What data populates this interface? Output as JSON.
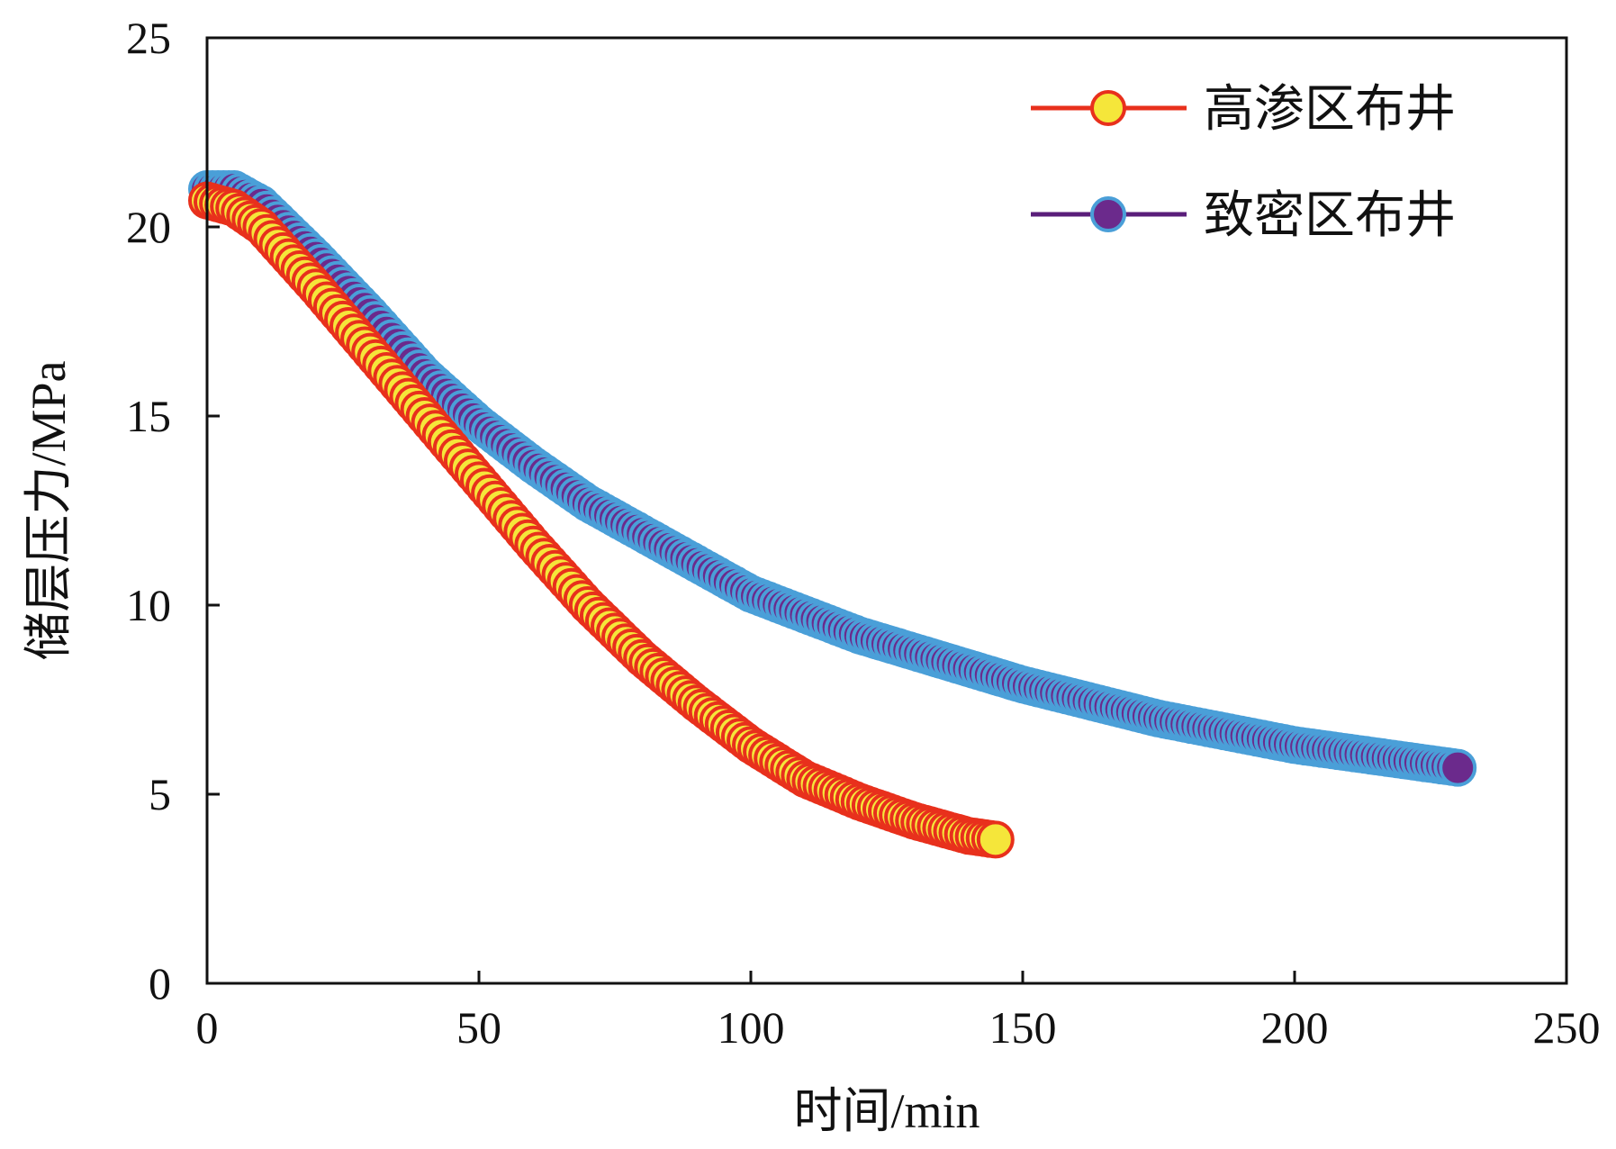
{
  "chart_data": {
    "type": "line",
    "xlabel": "时间/min",
    "ylabel": "储层压力/MPa",
    "xlim": [
      0,
      250
    ],
    "ylim": [
      0,
      25
    ],
    "xticks": [
      0,
      50,
      100,
      150,
      200,
      250
    ],
    "yticks": [
      0,
      5,
      10,
      15,
      20,
      25
    ],
    "xtick_labels": [
      "0",
      "50",
      "100",
      "150",
      "200",
      "250"
    ],
    "ytick_labels": [
      "0",
      "5",
      "10",
      "15",
      "20",
      "25"
    ],
    "grid": false,
    "legend_position": "top-right",
    "series": [
      {
        "name": "高渗区布井",
        "line_color": "#e8301c",
        "marker_fill": "#f5e63a",
        "marker_edge": "#e8301c",
        "x": [
          0,
          5,
          10,
          20,
          30,
          40,
          50,
          60,
          70,
          80,
          90,
          100,
          110,
          120,
          130,
          140,
          145
        ],
        "y": [
          20.7,
          20.5,
          20.0,
          18.4,
          16.7,
          15.0,
          13.3,
          11.6,
          10.0,
          8.6,
          7.4,
          6.3,
          5.4,
          4.8,
          4.3,
          3.9,
          3.8
        ]
      },
      {
        "name": "致密区布井",
        "line_color": "#5a1e7a",
        "marker_fill": "#6b2a8c",
        "marker_edge": "#4a9fd8",
        "x": [
          0,
          5,
          10,
          20,
          30,
          40,
          50,
          60,
          70,
          80,
          100,
          120,
          150,
          175,
          200,
          220,
          230
        ],
        "y": [
          21.0,
          21.0,
          20.6,
          19.2,
          17.7,
          16.1,
          14.8,
          13.7,
          12.7,
          11.9,
          10.3,
          9.2,
          7.9,
          7.0,
          6.3,
          5.9,
          5.7
        ]
      }
    ]
  }
}
